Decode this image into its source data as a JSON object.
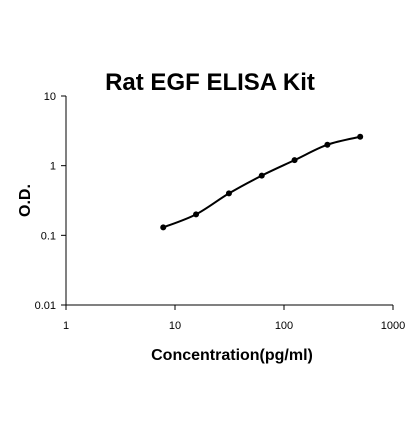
{
  "chart_data": {
    "type": "scatter",
    "title": "Rat EGF ELISA Kit",
    "xlabel": "Concentration(pg/ml)",
    "ylabel": "O.D.",
    "x_scale": "log",
    "y_scale": "log",
    "xlim": [
      1,
      1000
    ],
    "ylim": [
      0.01,
      10
    ],
    "x_ticks": [
      "1",
      "10",
      "100",
      "1000"
    ],
    "y_ticks": [
      "0.01",
      "0.1",
      "1",
      "10"
    ],
    "grid": false,
    "legend": "none",
    "series": [
      {
        "x": [
          7.8,
          15.6,
          31.25,
          62.5,
          125,
          250,
          500
        ],
        "y": [
          0.13,
          0.2,
          0.4,
          0.72,
          1.2,
          2.0,
          2.6
        ],
        "marker": "circle",
        "fit_line": true,
        "color": "#000000"
      }
    ]
  }
}
